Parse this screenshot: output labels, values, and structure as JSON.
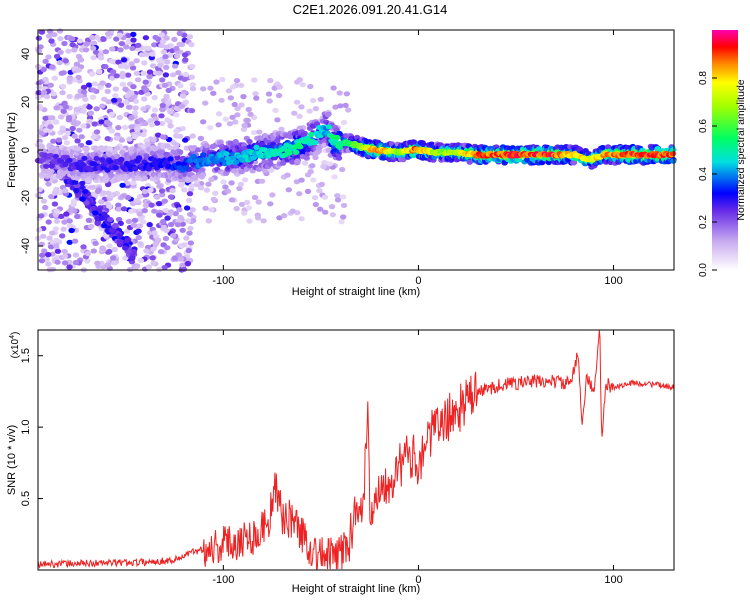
{
  "title": "C2E1.2026.091.20.41.G14",
  "chart_data": [
    {
      "type": "heatmap",
      "name": "spectrogram",
      "xlabel": "Height of straight line (km)",
      "ylabel": "Frequency (Hz)",
      "xlim": [
        -195,
        131
      ],
      "ylim": [
        -50,
        50
      ],
      "x_ticks": [
        {
          "value": -100,
          "label": "-100"
        },
        {
          "value": 0,
          "label": "0"
        },
        {
          "value": 100,
          "label": "100"
        }
      ],
      "y_ticks": [
        {
          "value": 40,
          "label": "40"
        },
        {
          "value": 20,
          "label": "20"
        },
        {
          "value": 0,
          "label": "0"
        },
        {
          "value": -20,
          "label": "-20"
        },
        {
          "value": -40,
          "label": "-40"
        }
      ],
      "ridge": [
        {
          "x": -195,
          "y": -4,
          "amp": 0.25
        },
        {
          "x": -170,
          "y": -6,
          "amp": 0.3
        },
        {
          "x": -150,
          "y": -6,
          "amp": 0.3
        },
        {
          "x": -130,
          "y": -5,
          "amp": 0.33
        },
        {
          "x": -120,
          "y": -6,
          "amp": 0.38
        },
        {
          "x": -110,
          "y": -4,
          "amp": 0.42
        },
        {
          "x": -95,
          "y": -3,
          "amp": 0.47
        },
        {
          "x": -80,
          "y": -1,
          "amp": 0.5
        },
        {
          "x": -70,
          "y": 0,
          "amp": 0.52
        },
        {
          "x": -60,
          "y": 2,
          "amp": 0.55
        },
        {
          "x": -52,
          "y": 6,
          "amp": 0.5
        },
        {
          "x": -47,
          "y": 10,
          "amp": 0.45
        },
        {
          "x": -44,
          "y": 3,
          "amp": 0.55
        },
        {
          "x": -36,
          "y": 3,
          "amp": 0.6
        },
        {
          "x": -28,
          "y": 1,
          "amp": 0.75
        },
        {
          "x": -22,
          "y": 0,
          "amp": 0.95
        },
        {
          "x": -10,
          "y": -1,
          "amp": 0.7
        },
        {
          "x": -2,
          "y": 0,
          "amp": 0.95
        },
        {
          "x": 10,
          "y": -1,
          "amp": 0.72
        },
        {
          "x": 20,
          "y": -1,
          "amp": 0.75
        },
        {
          "x": 30,
          "y": -2,
          "amp": 0.95
        },
        {
          "x": 50,
          "y": -2,
          "amp": 0.98
        },
        {
          "x": 70,
          "y": -2,
          "amp": 0.97
        },
        {
          "x": 80,
          "y": -2,
          "amp": 0.85
        },
        {
          "x": 88,
          "y": -4,
          "amp": 0.8
        },
        {
          "x": 95,
          "y": -2,
          "amp": 0.9
        },
        {
          "x": 110,
          "y": -2,
          "amp": 0.98
        },
        {
          "x": 131,
          "y": -2,
          "amp": 0.95
        }
      ],
      "colorbar": {
        "label": "Normalized spectral amplitude",
        "range": [
          0,
          1
        ],
        "ticks": [
          {
            "value": 0.0,
            "label": "0.0"
          },
          {
            "value": 0.2,
            "label": "0.2"
          },
          {
            "value": 0.4,
            "label": "0.4"
          },
          {
            "value": 0.6,
            "label": "0.6"
          },
          {
            "value": 0.8,
            "label": "0.8"
          }
        ],
        "stops": [
          {
            "value": 0.0,
            "color": "#ffffff"
          },
          {
            "value": 0.12,
            "color": "#c8aaf0"
          },
          {
            "value": 0.25,
            "color": "#6428e8"
          },
          {
            "value": 0.32,
            "color": "#0000ff"
          },
          {
            "value": 0.45,
            "color": "#00e0e0"
          },
          {
            "value": 0.55,
            "color": "#00ff60"
          },
          {
            "value": 0.68,
            "color": "#a0ff00"
          },
          {
            "value": 0.78,
            "color": "#ffff00"
          },
          {
            "value": 0.86,
            "color": "#ff8800"
          },
          {
            "value": 0.93,
            "color": "#ff0000"
          },
          {
            "value": 1.0,
            "color": "#ff00b0"
          }
        ]
      }
    },
    {
      "type": "line",
      "name": "snr",
      "xlabel": "Height of straight line (km)",
      "ylabel": "SNR (10 * v/v)",
      "y_multiplier": "(x10",
      "y_multiplier_exp": "4",
      "y_multiplier_close": ")",
      "xlim": [
        -195,
        131
      ],
      "ylim": [
        0,
        16800
      ],
      "color": "#ee2222",
      "x_ticks": [
        {
          "value": -100,
          "label": "-100"
        },
        {
          "value": 0,
          "label": "0"
        },
        {
          "value": 100,
          "label": "100"
        }
      ],
      "y_ticks": [
        {
          "value": 5000,
          "label": "0.5"
        },
        {
          "value": 10000,
          "label": "1.0"
        },
        {
          "value": 15000,
          "label": "1.5"
        }
      ],
      "series": [
        {
          "x": -195,
          "y": 400
        },
        {
          "x": -180,
          "y": 450
        },
        {
          "x": -160,
          "y": 500
        },
        {
          "x": -140,
          "y": 550
        },
        {
          "x": -125,
          "y": 700
        },
        {
          "x": -115,
          "y": 1300
        },
        {
          "x": -100,
          "y": 1800
        },
        {
          "x": -90,
          "y": 2200
        },
        {
          "x": -82,
          "y": 2500
        },
        {
          "x": -76,
          "y": 3800
        },
        {
          "x": -74,
          "y": 6000
        },
        {
          "x": -70,
          "y": 3800
        },
        {
          "x": -64,
          "y": 3500
        },
        {
          "x": -60,
          "y": 2600
        },
        {
          "x": -55,
          "y": 1500
        },
        {
          "x": -50,
          "y": 1000
        },
        {
          "x": -44,
          "y": 900
        },
        {
          "x": -40,
          "y": 1200
        },
        {
          "x": -35,
          "y": 2000
        },
        {
          "x": -32,
          "y": 5000
        },
        {
          "x": -28,
          "y": 4500
        },
        {
          "x": -26,
          "y": 12500
        },
        {
          "x": -25,
          "y": 3500
        },
        {
          "x": -22,
          "y": 5500
        },
        {
          "x": -18,
          "y": 6000
        },
        {
          "x": -14,
          "y": 6500
        },
        {
          "x": -10,
          "y": 7200
        },
        {
          "x": -5,
          "y": 8000
        },
        {
          "x": 0,
          "y": 7600
        },
        {
          "x": 5,
          "y": 9300
        },
        {
          "x": 10,
          "y": 10000
        },
        {
          "x": 15,
          "y": 10600
        },
        {
          "x": 20,
          "y": 11200
        },
        {
          "x": 25,
          "y": 11800
        },
        {
          "x": 30,
          "y": 12400
        },
        {
          "x": 40,
          "y": 12900
        },
        {
          "x": 50,
          "y": 13100
        },
        {
          "x": 60,
          "y": 13200
        },
        {
          "x": 70,
          "y": 13200
        },
        {
          "x": 78,
          "y": 13000
        },
        {
          "x": 82,
          "y": 15200
        },
        {
          "x": 84,
          "y": 10000
        },
        {
          "x": 86,
          "y": 13600
        },
        {
          "x": 90,
          "y": 12400
        },
        {
          "x": 93,
          "y": 16800
        },
        {
          "x": 94,
          "y": 8700
        },
        {
          "x": 96,
          "y": 13000
        },
        {
          "x": 100,
          "y": 12800
        },
        {
          "x": 110,
          "y": 13100
        },
        {
          "x": 120,
          "y": 13000
        },
        {
          "x": 131,
          "y": 12800
        }
      ]
    }
  ]
}
